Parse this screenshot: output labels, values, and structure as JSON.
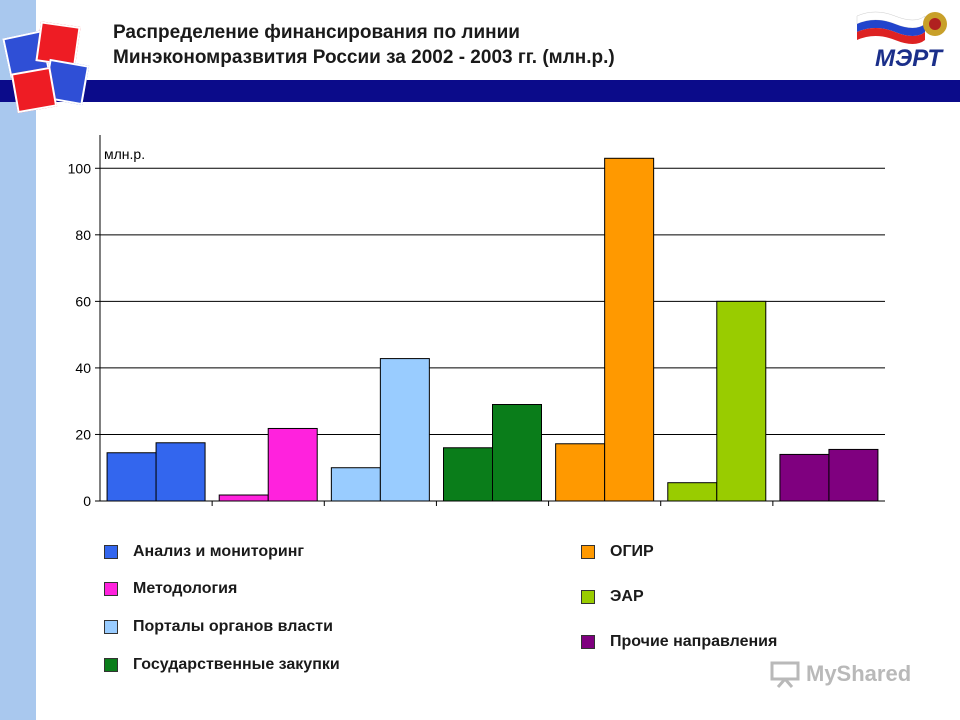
{
  "header": {
    "title_line1": "Распределение финансирования по линии",
    "title_line2": "Минэкономразвития России за 2002 - 2003 гг. (млн.р.)"
  },
  "logo": {
    "text": "МЭРТ"
  },
  "watermark": {
    "text": "MyShared"
  },
  "colors": {
    "stripe": "#a9c8ee",
    "band": "#0b0b8a",
    "logo_blue": "#2f4fd6",
    "logo_red": "#ee1c24"
  },
  "chart_data": {
    "type": "bar",
    "title": "",
    "xlabel": "",
    "ylabel": "млн.р.",
    "ylim": [
      0,
      110
    ],
    "yticks": [
      0,
      20,
      40,
      60,
      80,
      100
    ],
    "grid": true,
    "legend_position": "bottom",
    "series": [
      {
        "name": "Анализ и мониторинг",
        "color": "#3366ee",
        "light": "#3366ee",
        "values": [
          14.5,
          17.5
        ]
      },
      {
        "name": "Методология",
        "color": "#ff22dd",
        "light": "#ff22dd",
        "values": [
          1.8,
          21.8
        ]
      },
      {
        "name": "Порталы органов власти",
        "color": "#99ccff",
        "light": "#99ccff",
        "values": [
          10.0,
          42.8
        ]
      },
      {
        "name": "Государственные закупки",
        "color": "#0a7d1a",
        "light": "#0a7d1a",
        "values": [
          16.0,
          29.0
        ]
      },
      {
        "name": "ОГИР",
        "color": "#ff9900",
        "light": "#ff9900",
        "values": [
          17.2,
          103.0
        ]
      },
      {
        "name": "ЭАР",
        "color": "#99cc00",
        "light": "#99cc00",
        "values": [
          5.5,
          60.0
        ]
      },
      {
        "name": "Прочие направления",
        "color": "#7f007f",
        "light": "#7f007f",
        "values": [
          14.0,
          15.5
        ]
      }
    ]
  }
}
